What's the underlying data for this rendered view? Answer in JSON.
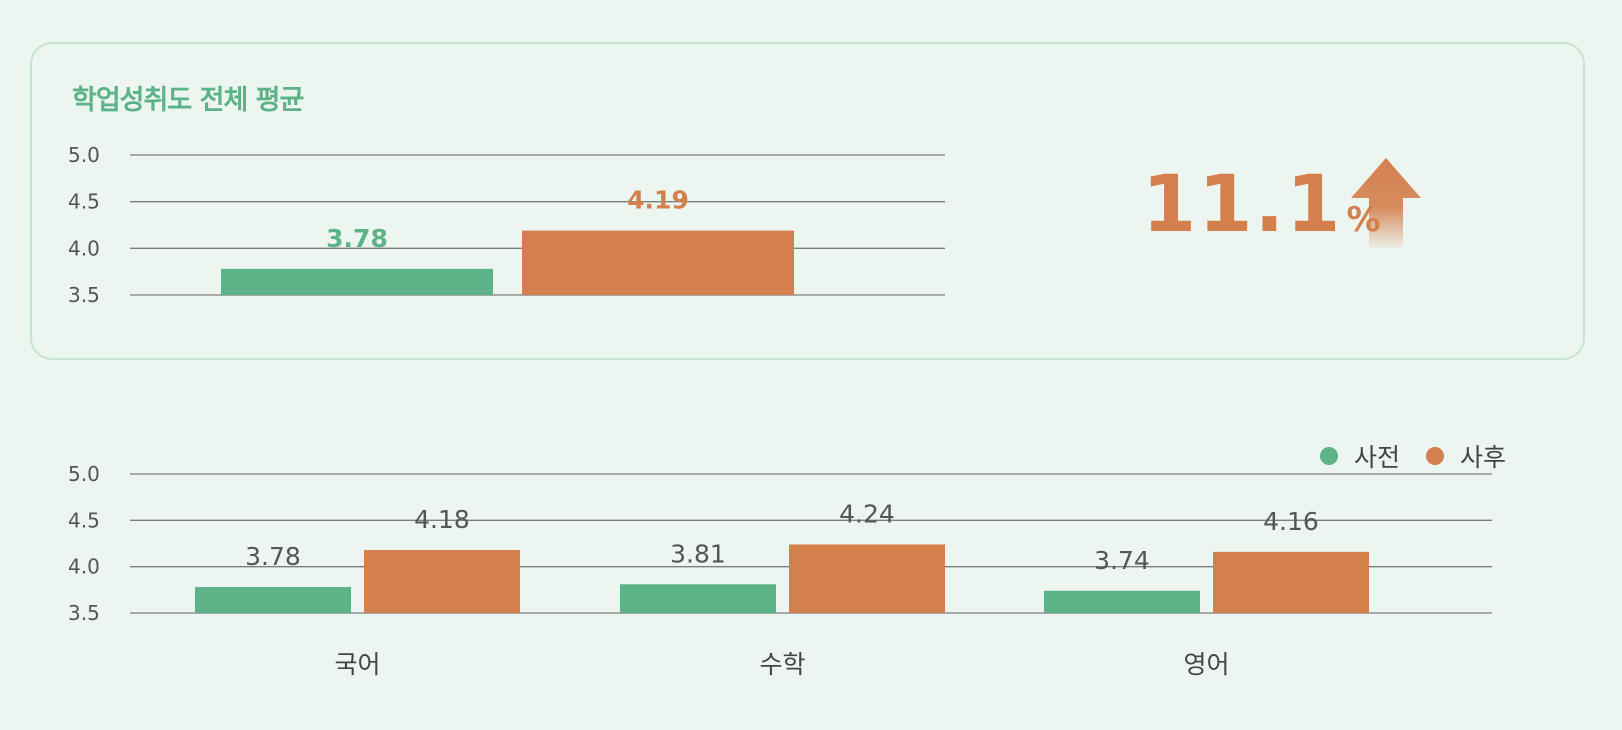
{
  "colors": {
    "before": "#5cb388",
    "after": "#d4804d",
    "grid": "#7d7d7d",
    "tick_text": "#555555",
    "value_text": "#555555",
    "title": "#5cb388",
    "percent": "#d4804d"
  },
  "summary": {
    "title": "학업성취도 전체 평균",
    "percent_value": "11.1",
    "percent_unit": "%",
    "trend_icon": "arrow-up-icon"
  },
  "legend": {
    "items": [
      {
        "label": "사전",
        "color": "#5cb388"
      },
      {
        "label": "사후",
        "color": "#d4804d"
      }
    ]
  },
  "chart_data": [
    {
      "type": "bar",
      "title": "학업성취도 전체 평균",
      "xlabel": "",
      "ylabel": "",
      "ylim": [
        3.5,
        5.0
      ],
      "yticks": [
        5.0,
        4.5,
        4.0,
        3.5
      ],
      "ytick_labels": [
        "5.0",
        "4.5",
        "4.0",
        "3.5"
      ],
      "categories": [
        ""
      ],
      "series": [
        {
          "name": "사전",
          "values": [
            3.78
          ],
          "value_labels": [
            "3.78"
          ]
        },
        {
          "name": "사후",
          "values": [
            4.19
          ],
          "value_labels": [
            "4.19"
          ]
        }
      ],
      "value_label_colors": "series",
      "grid": true
    },
    {
      "type": "bar",
      "title": "",
      "xlabel": "",
      "ylabel": "",
      "ylim": [
        3.5,
        5.0
      ],
      "yticks": [
        5.0,
        4.5,
        4.0,
        3.5
      ],
      "ytick_labels": [
        "5.0",
        "4.5",
        "4.0",
        "3.5"
      ],
      "categories": [
        "국어",
        "수학",
        "영어"
      ],
      "series": [
        {
          "name": "사전",
          "values": [
            3.78,
            3.81,
            3.74
          ],
          "value_labels": [
            "3.78",
            "3.81",
            "3.74"
          ]
        },
        {
          "name": "사후",
          "values": [
            4.18,
            4.24,
            4.16
          ],
          "value_labels": [
            "4.18",
            "4.24",
            "4.16"
          ]
        }
      ],
      "legend": "top-right",
      "grid": true
    }
  ]
}
